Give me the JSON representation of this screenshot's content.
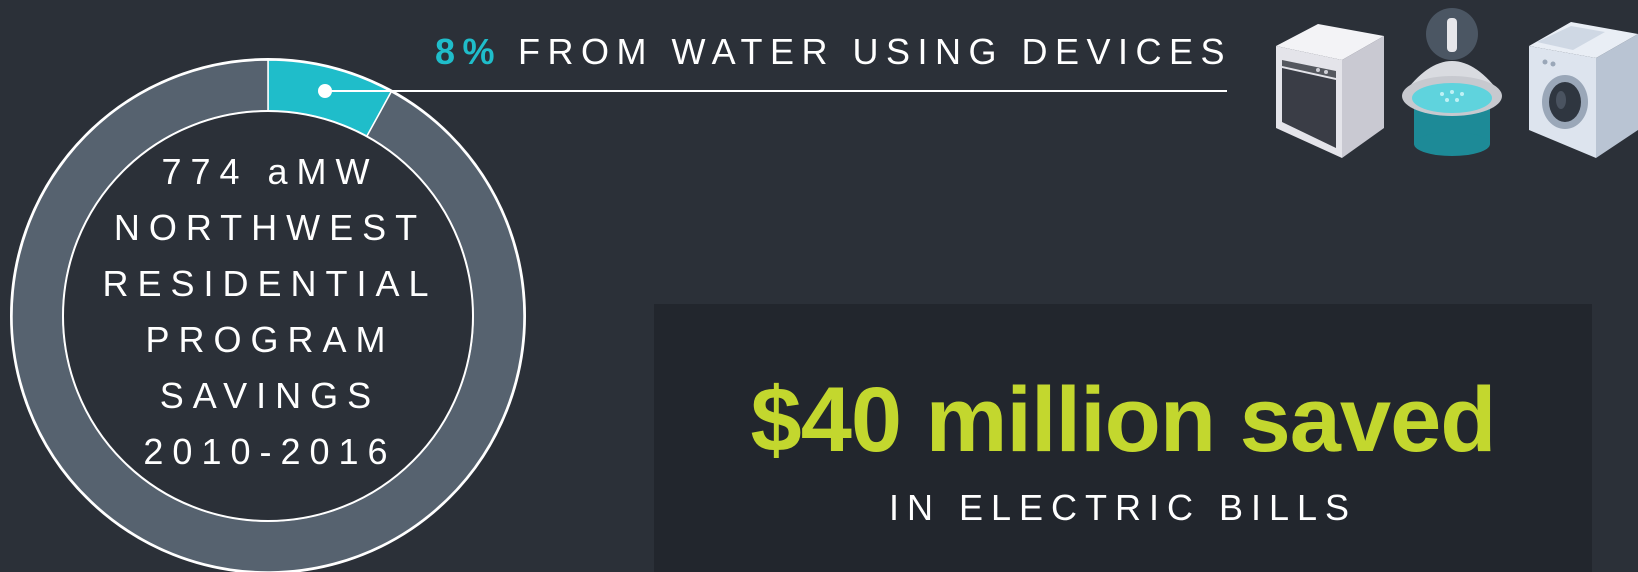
{
  "chart_data": {
    "type": "pie",
    "variant": "donut",
    "center_lines": [
      "774 aMW",
      "NORTHWEST",
      "RESIDENTIAL",
      "PROGRAM",
      "SAVINGS",
      "2010-2016"
    ],
    "slices": [
      {
        "label": "FROM WATER USING DEVICES",
        "value": 8,
        "value_label": "8%",
        "color": "#1fbdca"
      },
      {
        "value": 92,
        "color": "#56626f"
      }
    ],
    "start": "top",
    "direction": "clockwise"
  },
  "callout": {
    "percent": "8%",
    "text": "FROM WATER USING DEVICES"
  },
  "icons": [
    "dishwasher-icon",
    "shower-icon",
    "washing-machine-icon"
  ],
  "savings": {
    "amount": "$40 million saved",
    "caption": "IN ELECTRIC BILLS"
  },
  "colors": {
    "background": "#2b3038",
    "panel": "#22262d",
    "accent_teal": "#1fbdca",
    "accent_green": "#c3d72e",
    "ring_gray": "#56626f"
  }
}
